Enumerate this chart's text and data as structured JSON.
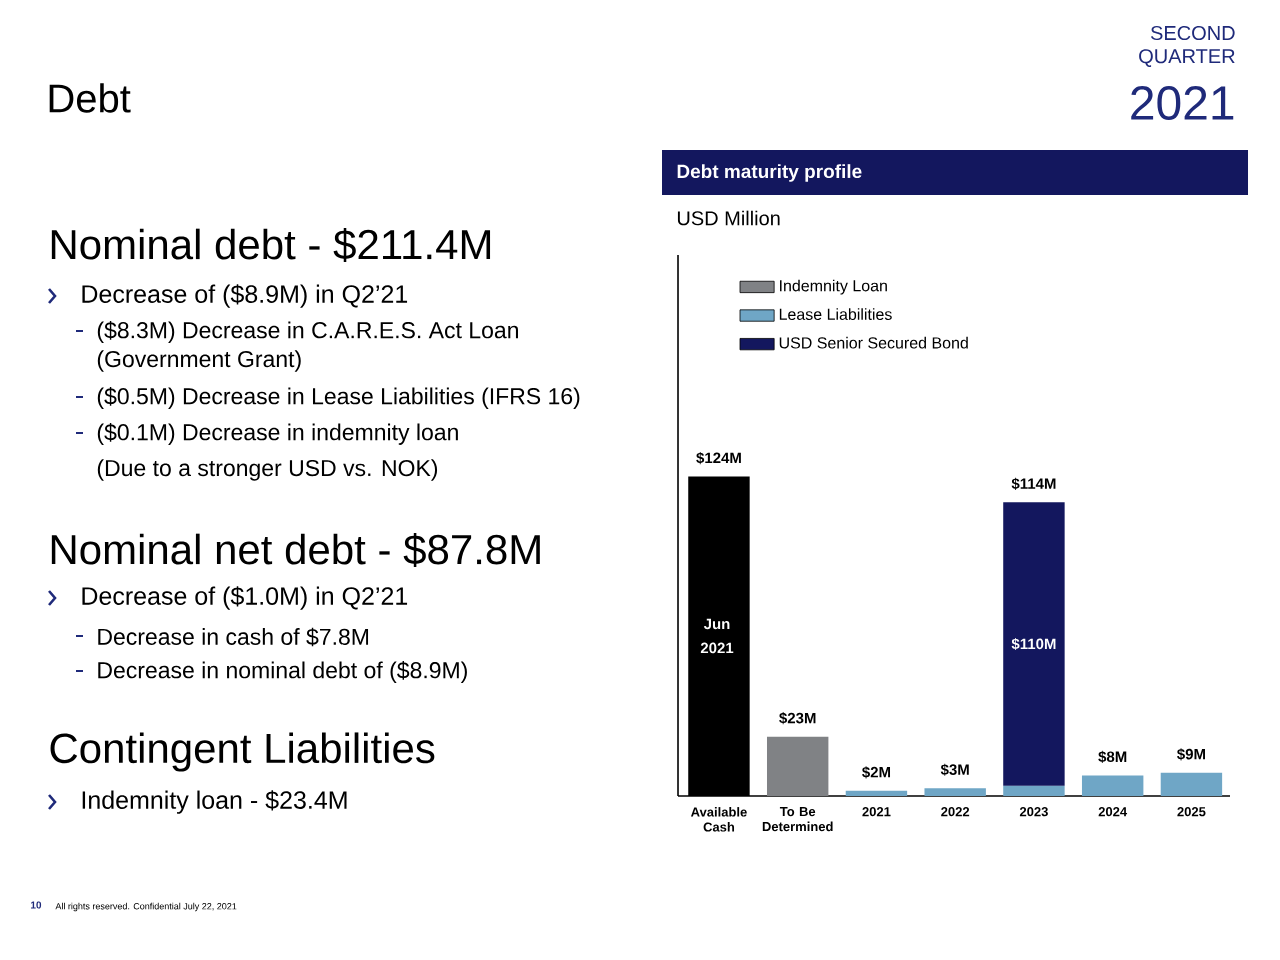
{
  "chart_data": {
    "type": "bar",
    "title": "Debt maturity profile",
    "ylabel": "USD Million",
    "categories": [
      "Available Cash",
      "To Be Determined",
      "2021",
      "2022",
      "2023",
      "2024",
      "2025"
    ],
    "stacked": true,
    "ylim": [
      0,
      210
    ],
    "legend": "top",
    "series": [
      {
        "color": "#000000",
        "values": [
          124,
          null,
          null,
          null,
          null,
          null,
          null
        ],
        "value_labels": [
          "$124M",
          null,
          null,
          null,
          null,
          null,
          null
        ]
      },
      {
        "name": "Indemnity Loan",
        "color": "#808285",
        "values": [
          null,
          23,
          null,
          null,
          null,
          null,
          null
        ],
        "value_labels": [
          null,
          "$23M",
          null,
          null,
          null,
          null,
          null
        ]
      },
      {
        "name": "Lease Liabilities",
        "color": "#6fa6c6",
        "values": [
          null,
          null,
          2,
          3,
          4,
          8,
          9
        ],
        "value_labels": [
          null,
          null,
          "$2M",
          "$3M",
          null,
          "$8M",
          "$9M"
        ]
      },
      {
        "name": "USD Senior Secured Bond",
        "color": "#13175e",
        "values": [
          null,
          null,
          null,
          null,
          110,
          null,
          null
        ],
        "value_labels": [
          null,
          null,
          null,
          null,
          "$110M",
          null,
          null
        ]
      }
    ],
    "totals": [
      null,
      null,
      null,
      null,
      "$114M",
      null,
      null
    ],
    "annotations": [
      "Debt",
      "SECOND",
      "QUARTER",
      "2021",
      "Nominal debt - $211.4M",
      "Decrease of ($8.9M) in Q2’21",
      "($8.3M) Decrease in C.A.R.E.S. Act Loan",
      "(Government Grant)",
      "($0.5M) Decrease in Lease Liabilities (IFRS 16)",
      "($0.1M) Decrease in indemnity loan",
      "(Due to a stronger USD vs. NOK)",
      "Nominal net debt - $87.8M",
      "Decrease of ($1.0M) in Q2’21",
      "Decrease in cash of $7.8M",
      "Decrease in nominal debt of ($8.9M)",
      "Contingent Liabilities",
      "Indemnity loan - $23.4M",
      "10",
      "All rights reserved. Confidential July 22, 2021",
      "Jun 2021"
    ]
  }
}
